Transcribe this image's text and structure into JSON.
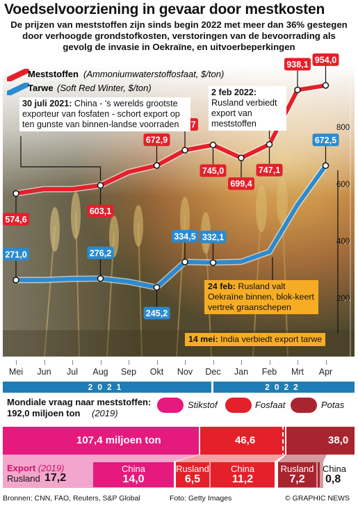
{
  "title": "Voedselvoorziening in gevaar door mestkosten",
  "subtitle": [
    "De prijzen van meststoffen zijn sinds begin 2022 met meer dan 36% gestegen",
    "door verhoogde grondstofkosten, verstoringen van de bevoorrading als",
    "gevolg de invasie in Oekraïne, en uitvoerbeperkingen"
  ],
  "legend": {
    "fert_name": "Meststoffen",
    "fert_desc": "(Ammoniumwaterstoffosfaat, $/ton)",
    "wheat_name": "Tarwe",
    "wheat_desc": "(Soft Red Winter, $/ton)"
  },
  "colors": {
    "fert": "#e4202a",
    "wheat": "#2a8bd0",
    "orange": "#f6ad25",
    "year": "#1e7cb6",
    "stikstof": "#e6197e",
    "fosfaat": "#e4202a",
    "potas": "#a8242e"
  },
  "notes": {
    "july_date": "30 juli 2021:",
    "july_text": " China - 's werelds grootste exporteur van fosfaten - schort export op ten gunste van binnen-landse voorraden",
    "feb2_date": "2 feb 2022:",
    "feb2_text": "Rusland verbiedt export van meststoffen",
    "feb24_date": "24 feb:",
    "feb24_text": " Rusland valt Oekraïne binnen, blok-keert vertrek graanschepen",
    "may14_date": "14 mei:",
    "may14_text": " India verbiedt export tarwe"
  },
  "years": [
    "2021",
    "2022"
  ],
  "demand": {
    "title": "Mondiale vraag naar meststoffen:",
    "total": "192,0 miljoen ton",
    "year": "(2019)",
    "legend": [
      "Stikstof",
      "Fosfaat",
      "Potas"
    ],
    "values": [
      "107,4 miljoen ton",
      "46,6",
      "38,0"
    ],
    "export_label": "Export",
    "export_year": "(2019)",
    "exports": [
      {
        "country": "Rusland",
        "value": "17,2"
      },
      {
        "country": "China",
        "value": "14,0"
      },
      {
        "country": "Rusland",
        "value": "6,5"
      },
      {
        "country": "China",
        "value": "11,2"
      },
      {
        "country": "Rusland",
        "value": "7,2"
      },
      {
        "country": "China",
        "value": "0,8"
      }
    ]
  },
  "credits": {
    "sources": "Bronnen: CNN, FAO, Reuters, S&P Global",
    "photo": "Foto: Getty Images",
    "brand": "© GRAPHIC NEWS"
  },
  "chart_data": {
    "type": "line",
    "categories": [
      "Mei",
      "Jun",
      "Jul",
      "Aug",
      "Sep",
      "Okt",
      "Nov",
      "Dec",
      "Jan",
      "Feb",
      "Mrt",
      "Apr"
    ],
    "ylim": [
      0,
      1000
    ],
    "yticks": [
      200,
      400,
      600,
      800
    ],
    "series": [
      {
        "name": "Meststoffen",
        "unit": "$/ton",
        "values": [
          574.6,
          590,
          590,
          603.1,
          650,
          672.9,
          726.7,
          745.0,
          699.4,
          747.1,
          938.1,
          954.0
        ],
        "labels": [
          "574,6",
          null,
          null,
          "603,1",
          null,
          "672,9",
          "726,7",
          "745,0",
          "699,4",
          "747,1",
          "938,1",
          "954,0"
        ]
      },
      {
        "name": "Tarwe",
        "unit": "$/ton",
        "values": [
          271.0,
          271,
          275,
          276.2,
          265,
          245.2,
          334.5,
          332.1,
          335,
          370,
          535,
          672.5
        ],
        "labels": [
          "271,0",
          null,
          null,
          "276,2",
          null,
          "245,2",
          "334,5",
          "332,1",
          null,
          null,
          null,
          "672,5"
        ]
      }
    ]
  }
}
